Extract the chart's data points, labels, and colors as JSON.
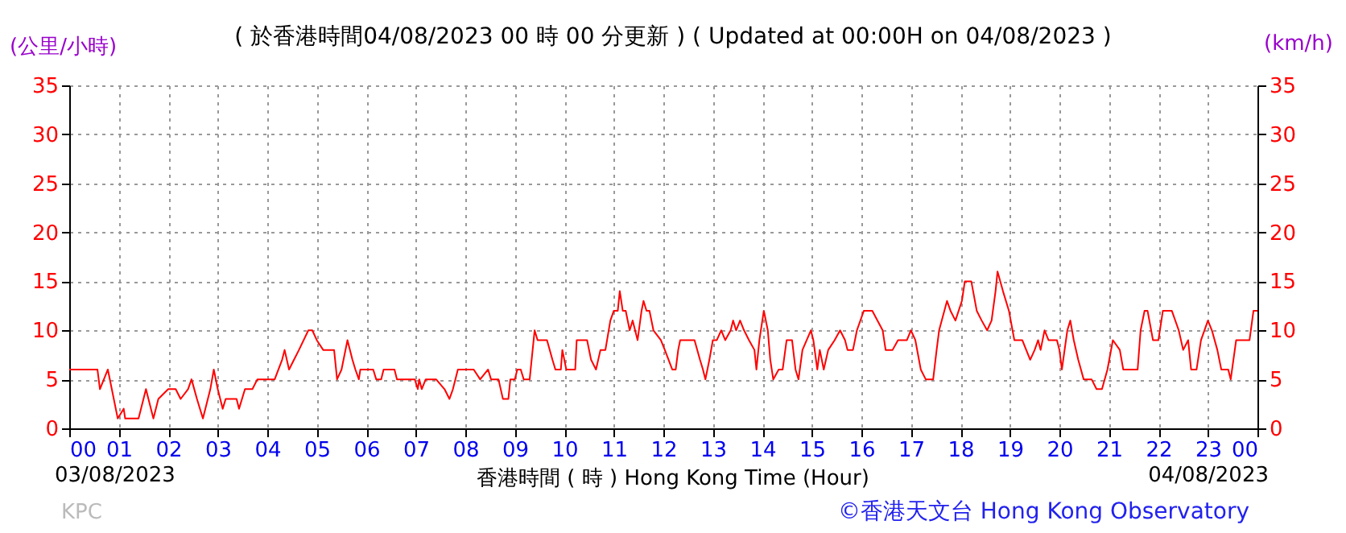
{
  "chart_data": {
    "type": "line",
    "title": "( 於香港時間04/08/2023 00 時 00 分更新 ) ( Updated at 00:00H on 04/08/2023 )",
    "xlabel": "香港時間 ( 時 )  Hong Kong Time (Hour)",
    "ylabel": "(公里/小時)",
    "y2label": "(km/h)",
    "annotations": [
      "03/08/2023",
      "04/08/2023",
      "KPC",
      "©香港天文台 Hong Kong Observatory"
    ],
    "xlim": [
      0,
      24
    ],
    "xticks": [
      {
        "value": 0,
        "label": "00"
      },
      {
        "value": 1,
        "label": "01"
      },
      {
        "value": 2,
        "label": "02"
      },
      {
        "value": 3,
        "label": "03"
      },
      {
        "value": 4,
        "label": "04"
      },
      {
        "value": 5,
        "label": "05"
      },
      {
        "value": 6,
        "label": "06"
      },
      {
        "value": 7,
        "label": "07"
      },
      {
        "value": 8,
        "label": "08"
      },
      {
        "value": 9,
        "label": "09"
      },
      {
        "value": 10,
        "label": "10"
      },
      {
        "value": 11,
        "label": "11"
      },
      {
        "value": 12,
        "label": "12"
      },
      {
        "value": 13,
        "label": "13"
      },
      {
        "value": 14,
        "label": "14"
      },
      {
        "value": 15,
        "label": "15"
      },
      {
        "value": 16,
        "label": "16"
      },
      {
        "value": 17,
        "label": "17"
      },
      {
        "value": 18,
        "label": "18"
      },
      {
        "value": 19,
        "label": "19"
      },
      {
        "value": 20,
        "label": "20"
      },
      {
        "value": 21,
        "label": "21"
      },
      {
        "value": 22,
        "label": "22"
      },
      {
        "value": 23,
        "label": "23"
      },
      {
        "value": 24,
        "label": "00"
      }
    ],
    "ylim": [
      0,
      35
    ],
    "yticks": [
      0,
      5,
      10,
      15,
      20,
      25,
      30,
      35
    ],
    "y2lim": [
      0,
      35
    ],
    "y2ticks": [
      0,
      5,
      10,
      15,
      20,
      25,
      30,
      35
    ],
    "grid": true,
    "x": [
      0,
      0.57,
      0.62,
      0.78,
      0.98,
      1.1,
      1.13,
      1.16,
      1.4,
      1.55,
      1.6,
      1.7,
      1.8,
      2.0,
      2.15,
      2.25,
      2.4,
      2.47,
      2.58,
      2.7,
      2.85,
      2.92,
      3.0,
      3.1,
      3.16,
      3.38,
      3.43,
      3.55,
      3.7,
      3.8,
      4.15,
      4.3,
      4.35,
      4.44,
      4.54,
      4.64,
      4.83,
      4.91,
      5.0,
      5.13,
      5.35,
      5.41,
      5.5,
      5.62,
      5.72,
      5.78,
      5.85,
      5.88,
      6.14,
      6.2,
      6.3,
      6.35,
      6.57,
      6.62,
      6.98,
      7.04,
      7.07,
      7.12,
      7.2,
      7.41,
      7.58,
      7.68,
      7.75,
      7.85,
      8.17,
      8.3,
      8.46,
      8.52,
      8.67,
      8.76,
      8.87,
      8.91,
      9.0,
      9.05,
      9.12,
      9.18,
      9.3,
      9.4,
      9.46,
      9.65,
      9.76,
      9.82,
      9.93,
      9.96,
      10.04,
      10.22,
      10.25,
      10.46,
      10.54,
      10.64,
      10.73,
      10.83,
      10.93,
      11.0,
      11.08,
      11.12,
      11.18,
      11.24,
      11.32,
      11.38,
      11.43,
      11.48,
      11.56,
      11.6,
      11.66,
      11.72,
      11.8,
      11.95,
      12.03,
      12.18,
      12.25,
      12.3,
      12.34,
      12.63,
      12.74,
      12.8,
      12.85,
      12.93,
      13.0,
      13.08,
      13.17,
      13.25,
      13.36,
      13.41,
      13.47,
      13.55,
      13.63,
      13.73,
      13.84,
      13.88,
      13.94,
      14.03,
      14.11,
      14.16,
      14.22,
      14.33,
      14.41,
      14.49,
      14.6,
      14.67,
      14.73,
      14.81,
      14.98,
      15.03,
      15.11,
      15.16,
      15.24,
      15.33,
      15.46,
      15.57,
      15.67,
      15.72,
      15.83,
      15.91,
      16.05,
      16.22,
      16.43,
      16.49,
      16.63,
      16.74,
      16.92,
      17.0,
      17.09,
      17.2,
      17.3,
      17.45,
      17.52,
      17.57,
      17.73,
      17.8,
      17.9,
      18.03,
      18.09,
      18.22,
      18.33,
      18.43,
      18.54,
      18.63,
      18.71,
      18.75,
      18.86,
      18.98,
      19.09,
      19.25,
      19.41,
      19.5,
      19.57,
      19.62,
      19.7,
      19.78,
      19.95,
      20.0,
      20.05,
      20.16,
      20.22,
      20.29,
      20.38,
      20.49,
      20.65,
      20.75,
      20.86,
      20.97,
      21.08,
      21.22,
      21.29,
      21.58,
      21.64,
      21.72,
      21.78,
      21.89,
      22.0,
      22.09,
      22.27,
      22.41,
      22.5,
      22.6,
      22.66,
      22.77,
      22.86,
      23.0,
      23.08,
      23.19,
      23.27,
      23.41,
      23.46,
      23.57,
      23.84,
      23.92,
      24.0
    ],
    "series": [
      {
        "color": "#ff0000",
        "values": [
          6,
          6,
          4,
          6,
          1,
          2,
          1,
          1,
          1,
          4,
          3,
          1,
          3,
          4,
          4,
          3,
          4,
          5,
          3,
          1,
          4,
          6,
          4,
          2,
          3,
          3,
          2,
          4,
          4,
          5,
          5,
          7,
          8,
          6,
          7,
          8,
          10,
          10,
          9,
          8,
          8,
          5,
          6,
          9,
          7,
          6,
          5,
          6,
          6,
          5,
          5,
          6,
          6,
          5,
          5,
          4,
          5,
          4,
          5,
          5,
          4,
          3,
          4,
          6,
          6,
          5,
          6,
          5,
          5,
          3,
          3,
          5,
          5,
          6,
          6,
          5,
          5,
          10,
          9,
          9,
          7,
          6,
          6,
          8,
          6,
          6,
          9,
          9,
          7,
          6,
          8,
          8,
          11,
          12,
          12,
          14,
          12,
          12,
          10,
          11,
          10,
          9,
          12,
          13,
          12,
          12,
          10,
          9,
          8,
          6,
          6,
          8,
          9,
          9,
          7,
          6,
          5,
          7,
          9,
          9,
          10,
          9,
          10,
          11,
          10,
          11,
          10,
          9,
          8,
          6,
          9,
          12,
          10,
          7,
          5,
          6,
          6,
          9,
          9,
          6,
          5,
          8,
          10,
          9,
          6,
          8,
          6,
          8,
          9,
          10,
          9,
          8,
          8,
          10,
          12,
          12,
          10,
          8,
          8,
          9,
          9,
          10,
          9,
          6,
          5,
          5,
          8,
          10,
          13,
          12,
          11,
          13,
          15,
          15,
          12,
          11,
          10,
          11,
          14,
          16,
          14,
          12,
          9,
          9,
          7,
          8,
          9,
          8,
          10,
          9,
          9,
          8,
          6,
          10,
          11,
          9,
          7,
          5,
          5,
          4,
          4,
          6,
          9,
          8,
          6,
          6,
          10,
          12,
          12,
          9,
          9,
          12,
          12,
          10,
          8,
          9,
          6,
          6,
          9,
          11,
          10,
          8,
          6,
          6,
          5,
          9,
          9,
          12,
          12
        ]
      }
    ]
  }
}
